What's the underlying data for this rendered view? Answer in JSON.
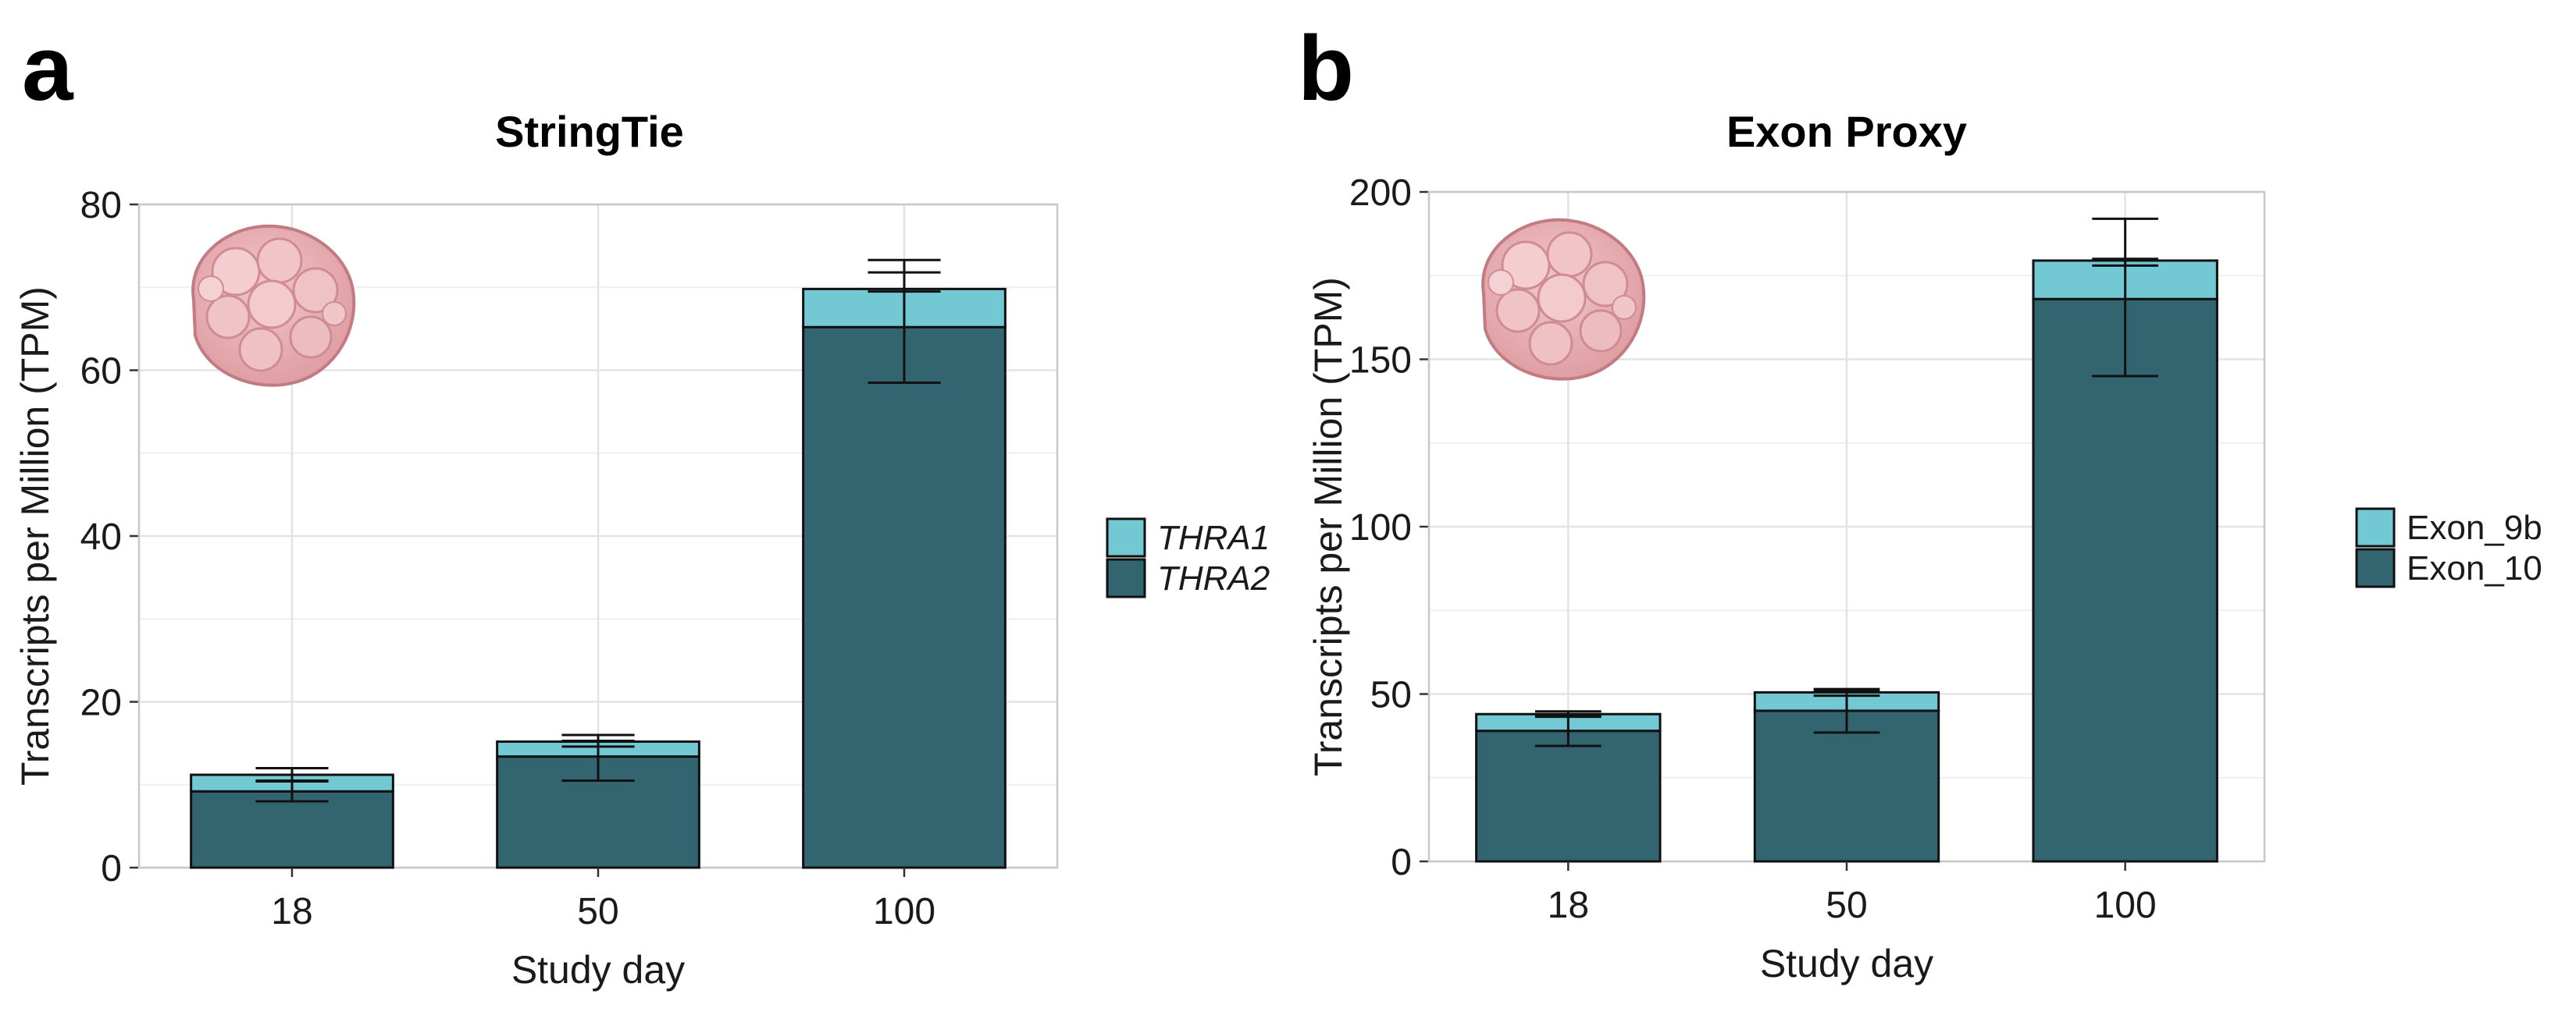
{
  "panels": [
    "a",
    "b"
  ],
  "colors": {
    "lower": "#336570",
    "upper": "#72c8d3",
    "grid": "#e3e3e3",
    "frame": "#c8c8c8"
  },
  "chart_data": [
    {
      "type": "bar",
      "stacked": true,
      "title": "StringTie",
      "xlabel": "Study day",
      "ylabel": "Transcripts per Million (TPM)",
      "categories": [
        "18",
        "50",
        "100"
      ],
      "ylim": [
        0,
        80
      ],
      "yticks": [
        0,
        20,
        40,
        60,
        80
      ],
      "italic_legend": true,
      "series": [
        {
          "name": "THRA2",
          "values": [
            9.2,
            13.4,
            65.2
          ],
          "color": "#336570"
        },
        {
          "name": "THRA1",
          "values": [
            2.0,
            1.8,
            4.6
          ],
          "color": "#72c8d3"
        }
      ],
      "legend_order": [
        "THRA1",
        "THRA2"
      ],
      "error_bars": [
        {
          "series": "THRA2",
          "low": [
            8.0,
            10.5,
            58.5
          ],
          "high": [
            10.5,
            15.3,
            71.8
          ]
        },
        {
          "series": "THRA1",
          "low": [
            10.4,
            14.6,
            69.5
          ],
          "high": [
            12.0,
            16.0,
            73.3
          ]
        }
      ],
      "legend_position": "right"
    },
    {
      "type": "bar",
      "stacked": true,
      "title": "Exon Proxy",
      "xlabel": "Study day",
      "ylabel": "Transcripts per Million (TPM)",
      "categories": [
        "18",
        "50",
        "100"
      ],
      "ylim": [
        0,
        200
      ],
      "yticks": [
        0,
        50,
        100,
        150,
        200
      ],
      "italic_legend": false,
      "series": [
        {
          "name": "Exon_10",
          "values": [
            39,
            45,
            168
          ],
          "color": "#336570"
        },
        {
          "name": "Exon_9b",
          "values": [
            5,
            5.5,
            11.5
          ],
          "color": "#72c8d3"
        }
      ],
      "legend_order": [
        "Exon_9b",
        "Exon_10"
      ],
      "error_bars": [
        {
          "series": "Exon_10",
          "low": [
            34.5,
            38.5,
            145
          ],
          "high": [
            43.5,
            51,
            192
          ]
        },
        {
          "series": "Exon_9b",
          "low": [
            43.2,
            49.5,
            178
          ],
          "high": [
            44.8,
            51.5,
            180
          ]
        }
      ],
      "legend_position": "right"
    }
  ]
}
